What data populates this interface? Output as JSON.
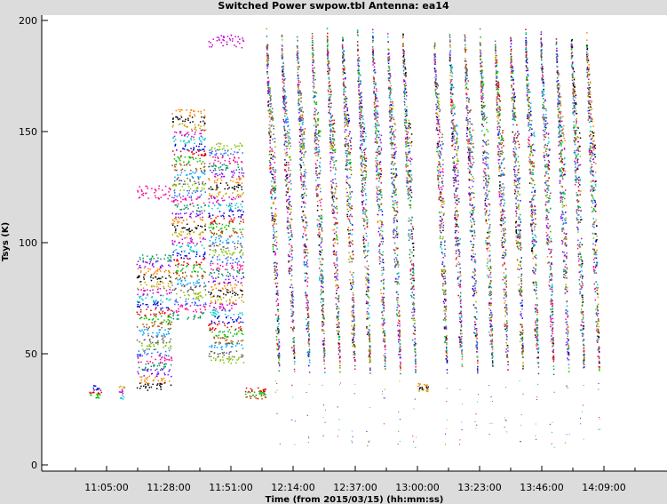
{
  "chart_data": {
    "type": "scatter",
    "title": "Switched Power  swpow.tbl   Antenna: ea14",
    "xlabel": "Time (from 2015/03/15) (hh:mm:ss)",
    "ylabel": "Tsys (K)",
    "ylim": [
      0,
      200
    ],
    "yticks": [
      0,
      50,
      100,
      150,
      200
    ],
    "xticks": [
      "11:05:00",
      "11:28:00",
      "11:51:00",
      "12:14:00",
      "12:37:00",
      "13:00:00",
      "13:23:00",
      "13:46:00",
      "14:09:00"
    ],
    "grid": false,
    "legend": "none",
    "segments": [
      {
        "start": "10:58:00",
        "end": "11:03:00",
        "tsys_low": 30,
        "tsys_high": 36
      },
      {
        "start": "11:09:30",
        "end": "11:11:30",
        "tsys_low": 30,
        "tsys_high": 36
      },
      {
        "start": "11:16:00",
        "end": "11:29:00",
        "tsys_low": 34,
        "tsys_high": 95,
        "outlier": 123
      },
      {
        "start": "11:29:00",
        "end": "11:41:30",
        "tsys_low": 66,
        "tsys_high": 160
      },
      {
        "start": "11:42:30",
        "end": "11:55:30",
        "tsys_low": 46,
        "tsys_high": 145,
        "outlier": 191
      },
      {
        "start": "11:56:00",
        "end": "12:04:00",
        "tsys_low": 30,
        "tsys_high": 35
      },
      {
        "start": "12:04:00",
        "end": "13:00:00",
        "tsys_low": 40,
        "tsys_high": 200,
        "cycles": 10
      },
      {
        "start": "13:00:00",
        "end": "13:04:00",
        "tsys_low": 33,
        "tsys_high": 37
      },
      {
        "start": "13:06:00",
        "end": "14:08:00",
        "tsys_low": 40,
        "tsys_high": 200,
        "cycles": 11
      }
    ]
  },
  "colors": [
    "#00c000",
    "#e00000",
    "#0000e0",
    "#00c8c8",
    "#c800c8",
    "#c8a000",
    "#000000",
    "#ff8000",
    "#8000ff",
    "#009060",
    "#ff0090",
    "#3060ff",
    "#80c000",
    "#606060",
    "#00a0ff",
    "#a05000"
  ]
}
